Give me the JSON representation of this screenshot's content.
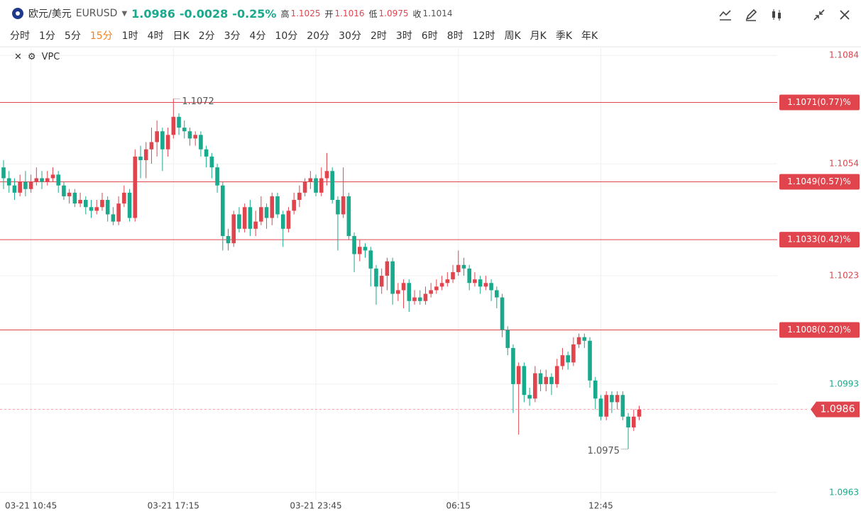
{
  "header": {
    "name": "欧元/美元",
    "symbol": "EURUSD",
    "price": "1.0986",
    "change": "-0.0028",
    "change_pct": "-0.25%",
    "high_label": "高",
    "high": "1.1025",
    "open_label": "开",
    "open": "1.1016",
    "low_label": "低",
    "low": "1.0975",
    "close_label": "收",
    "close": "1.1014"
  },
  "timeframes": [
    "分时",
    "1分",
    "5分",
    "15分",
    "1时",
    "4时",
    "日K",
    "2分",
    "3分",
    "4分",
    "10分",
    "20分",
    "30分",
    "2时",
    "3时",
    "6时",
    "8时",
    "12时",
    "周K",
    "月K",
    "季K",
    "年K"
  ],
  "active_timeframe": 3,
  "indicator": "VPC",
  "chart_data": {
    "type": "candlestick",
    "up_color": "#e0454e",
    "down_color": "#19a98c",
    "reference": 1.1014,
    "categories": [
      null,
      null,
      null,
      null,
      null,
      "03-21 10:45",
      null,
      null,
      null,
      null,
      null,
      null,
      null,
      null,
      null,
      null,
      null,
      null,
      null,
      null,
      null,
      null,
      null,
      null,
      null,
      null,
      null,
      null,
      null,
      null,
      null,
      "03-21 17:15",
      null,
      null,
      null,
      null,
      null,
      null,
      null,
      null,
      null,
      null,
      null,
      null,
      null,
      null,
      null,
      null,
      null,
      null,
      null,
      null,
      null,
      null,
      null,
      null,
      null,
      "03-21 23:45",
      null,
      null,
      null,
      null,
      null,
      null,
      null,
      null,
      null,
      null,
      null,
      null,
      null,
      null,
      null,
      null,
      null,
      null,
      null,
      null,
      null,
      null,
      null,
      null,
      null,
      "06:15",
      null,
      null,
      null,
      null,
      null,
      null,
      null,
      null,
      null,
      null,
      null,
      null,
      null,
      null,
      null,
      null,
      null,
      null,
      null,
      null,
      null,
      null,
      null,
      null,
      null,
      "12:45",
      null,
      null,
      null,
      null,
      null,
      null,
      null
    ],
    "open": [
      1.1053,
      1.105,
      1.1048,
      1.1046,
      1.1049,
      1.1047,
      1.1049,
      1.105,
      1.1049,
      1.105,
      1.1051,
      1.1048,
      1.1045,
      1.1046,
      1.1043,
      1.1044,
      1.1042,
      1.1041,
      1.1042,
      1.1044,
      1.104,
      1.1038,
      1.1043,
      1.1046,
      1.1039,
      1.1056,
      1.1055,
      1.1058,
      1.106,
      1.1063,
      1.1058,
      1.1062,
      1.1067,
      1.1064,
      1.1063,
      1.1061,
      1.1062,
      1.1058,
      1.1056,
      1.1053,
      1.1048,
      1.1034,
      1.1032,
      1.104,
      1.1036,
      1.1042,
      1.1036,
      1.1038,
      1.1042,
      1.1039,
      1.1045,
      1.104,
      1.1036,
      1.1041,
      1.1044,
      1.1046,
      1.1049,
      1.105,
      1.1046,
      1.105,
      1.1052,
      1.1044,
      1.104,
      1.1045,
      1.1034,
      1.1029,
      1.1031,
      1.103,
      1.1025,
      1.102,
      1.1023,
      1.1027,
      1.1018,
      1.1019,
      1.1021,
      1.1016,
      1.1017,
      1.1016,
      1.1018,
      1.1019,
      1.102,
      1.1021,
      1.1022,
      1.1024,
      1.1026,
      1.1025,
      1.1021,
      1.1022,
      1.102,
      1.1021,
      1.1019,
      1.1017,
      1.1008,
      1.1003,
      1.0993,
      1.0998,
      1.099,
      1.0989,
      1.0996,
      1.0993,
      1.0995,
      1.0993,
      1.0998,
      1.1001,
      1.0999,
      1.1004,
      1.1006,
      1.1005,
      1.0994,
      1.0989,
      1.0984,
      1.099,
      1.0988,
      1.099,
      1.0984,
      1.0981,
      1.0984
    ],
    "high": [
      1.1055,
      1.1052,
      1.105,
      1.1051,
      1.1052,
      1.1051,
      1.1053,
      1.1052,
      1.1052,
      1.1053,
      1.1052,
      1.1049,
      1.1047,
      1.1047,
      1.1046,
      1.1045,
      1.1044,
      1.1044,
      1.1046,
      1.1045,
      1.1042,
      1.1045,
      1.1048,
      1.1047,
      1.1058,
      1.1059,
      1.106,
      1.1064,
      1.1066,
      1.1064,
      1.1064,
      1.1072,
      1.1068,
      1.1066,
      1.1064,
      1.1063,
      1.1063,
      1.1059,
      1.1057,
      1.1054,
      1.1049,
      1.1036,
      1.1041,
      1.1042,
      1.1043,
      1.1044,
      1.1041,
      1.1045,
      1.1043,
      1.1046,
      1.1046,
      1.1041,
      1.1042,
      1.1046,
      1.1048,
      1.105,
      1.1052,
      1.1051,
      1.1053,
      1.1057,
      1.1053,
      1.1045,
      1.1053,
      1.1046,
      1.1035,
      1.1033,
      1.1032,
      1.1031,
      1.1026,
      1.1025,
      1.1028,
      1.1028,
      1.1021,
      1.1022,
      1.1022,
      1.1019,
      1.1019,
      1.102,
      1.1021,
      1.1022,
      1.1023,
      1.1024,
      1.1026,
      1.103,
      1.1028,
      1.1026,
      1.1024,
      1.1023,
      1.1023,
      1.1022,
      1.102,
      1.1018,
      1.1009,
      1.1004,
      1.0999,
      1.0999,
      1.0992,
      1.0998,
      1.0997,
      1.0997,
      1.0996,
      1.1,
      1.1003,
      1.1002,
      1.1006,
      1.1007,
      1.1007,
      1.1006,
      1.0995,
      1.099,
      1.0991,
      1.0991,
      1.0991,
      1.0991,
      1.0985,
      1.0986,
      1.0987
    ],
    "low": [
      1.1047,
      1.1046,
      1.1044,
      1.1045,
      1.1045,
      1.1046,
      1.1048,
      1.1047,
      1.1048,
      1.1049,
      1.1046,
      1.1044,
      1.1043,
      1.1042,
      1.1042,
      1.104,
      1.1039,
      1.104,
      1.1041,
      1.1038,
      1.1037,
      1.1037,
      1.1042,
      1.1038,
      1.1038,
      1.105,
      1.105,
      1.1054,
      1.1056,
      1.1052,
      1.1056,
      1.1061,
      1.1062,
      1.1061,
      1.1059,
      1.1059,
      1.1056,
      1.1053,
      1.105,
      1.1046,
      1.103,
      1.103,
      1.1031,
      1.1035,
      1.1035,
      1.1034,
      1.1034,
      1.1037,
      1.1036,
      1.1037,
      1.1039,
      1.1031,
      1.1035,
      1.104,
      1.1042,
      1.1045,
      1.1047,
      1.1045,
      1.1045,
      1.1048,
      1.1043,
      1.103,
      1.1039,
      1.1033,
      1.1024,
      1.1027,
      1.1028,
      1.102,
      1.1015,
      1.1018,
      1.1019,
      1.1015,
      1.1016,
      1.1014,
      1.1013,
      1.1015,
      1.1015,
      1.1015,
      1.1017,
      1.1018,
      1.1019,
      1.102,
      1.1021,
      1.1023,
      1.1023,
      1.1019,
      1.102,
      1.1018,
      1.1019,
      1.1016,
      1.1014,
      1.1006,
      1.1001,
      1.0985,
      1.0979,
      1.0988,
      1.0987,
      1.0988,
      1.0991,
      1.0991,
      1.099,
      1.0992,
      1.0997,
      1.0997,
      1.0998,
      1.1003,
      1.1003,
      1.0992,
      1.0986,
      1.0983,
      1.0983,
      1.0985,
      1.0986,
      1.0983,
      1.0975,
      1.098,
      1.0983
    ],
    "close": [
      1.105,
      1.1048,
      1.1046,
      1.1049,
      1.1047,
      1.1049,
      1.105,
      1.1049,
      1.105,
      1.1051,
      1.1048,
      1.1045,
      1.1046,
      1.1043,
      1.1044,
      1.1042,
      1.1041,
      1.1042,
      1.1044,
      1.104,
      1.1038,
      1.1043,
      1.1046,
      1.1039,
      1.1056,
      1.1055,
      1.1058,
      1.106,
      1.1063,
      1.1058,
      1.1062,
      1.1067,
      1.1064,
      1.1063,
      1.1061,
      1.1062,
      1.1058,
      1.1056,
      1.1053,
      1.1048,
      1.1034,
      1.1032,
      1.104,
      1.1036,
      1.1042,
      1.1036,
      1.1038,
      1.1042,
      1.1039,
      1.1045,
      1.104,
      1.1036,
      1.1041,
      1.1044,
      1.1046,
      1.1049,
      1.105,
      1.1046,
      1.105,
      1.1052,
      1.1044,
      1.104,
      1.1045,
      1.1034,
      1.1029,
      1.1031,
      1.103,
      1.1025,
      1.102,
      1.1023,
      1.1027,
      1.1018,
      1.1019,
      1.1021,
      1.1016,
      1.1017,
      1.1016,
      1.1018,
      1.1019,
      1.102,
      1.1021,
      1.1022,
      1.1024,
      1.1026,
      1.1025,
      1.1021,
      1.1022,
      1.102,
      1.1021,
      1.1019,
      1.1017,
      1.1008,
      1.1003,
      1.0993,
      1.0998,
      1.099,
      1.0989,
      1.0996,
      1.0993,
      1.0995,
      1.0993,
      1.0998,
      1.1001,
      1.0999,
      1.1004,
      1.1006,
      1.1005,
      1.0994,
      1.0989,
      1.0984,
      1.099,
      1.0988,
      1.099,
      1.0984,
      1.0981,
      1.0984,
      1.0986
    ],
    "max_index": 31,
    "min_index": 114,
    "ylim": [
      1.0961,
      1.1086
    ],
    "yticks": [
      1.0963,
      1.0993,
      1.1023,
      1.1054,
      1.1084
    ],
    "levels": [
      {
        "value": 1.1071,
        "label": "1.1071(0.77)%"
      },
      {
        "value": 1.1049,
        "label": "1.1049(0.57)%"
      },
      {
        "value": 1.1033,
        "label": "1.1033(0.42)%"
      },
      {
        "value": 1.1008,
        "label": "1.1008(0.20)%"
      }
    ],
    "last": 1.0986,
    "grid": true
  }
}
